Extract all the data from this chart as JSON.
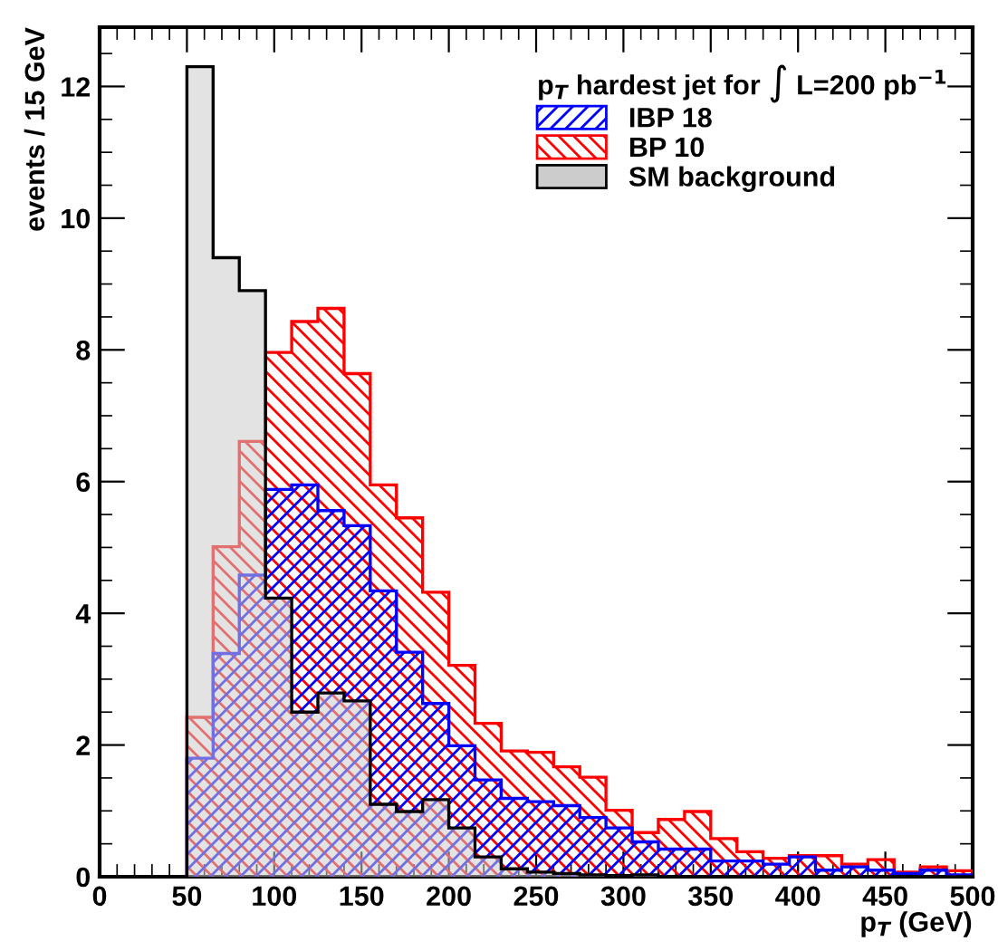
{
  "chart_data": {
    "type": "histogram",
    "xlabel": "p$_{T}$ (GeV)",
    "ylabel": "events / 15 GeV",
    "legend_title": "p$_{T}$ hardest jet for ∫ L=200 pb$^{−1}$",
    "bins": [
      50,
      65,
      80,
      95,
      110,
      125,
      140,
      155,
      170,
      185,
      200,
      215,
      230,
      245,
      260,
      275,
      290,
      305,
      320,
      335,
      350,
      365,
      380,
      395,
      410,
      425,
      440,
      455,
      470,
      485,
      500
    ],
    "series": [
      {
        "name": "IBP 18",
        "color": "#0000ff",
        "values": [
          1.8,
          3.39,
          4.58,
          5.88,
          5.95,
          5.56,
          5.33,
          4.34,
          3.41,
          2.63,
          1.99,
          1.47,
          1.19,
          1.14,
          1.08,
          0.9,
          0.74,
          0.53,
          0.42,
          0.42,
          0.24,
          0.24,
          0.19,
          0.3,
          0.1,
          0.15,
          0.1,
          0.05,
          0.1,
          0.03
        ]
      },
      {
        "name": "BP 10",
        "color": "#ff0000",
        "values": [
          2.42,
          5.01,
          6.61,
          7.96,
          8.43,
          8.63,
          7.64,
          5.95,
          5.45,
          4.32,
          3.21,
          2.33,
          1.91,
          1.89,
          1.67,
          1.51,
          1.01,
          0.67,
          0.87,
          0.99,
          0.58,
          0.38,
          0.28,
          0.32,
          0.32,
          0.19,
          0.26,
          0.07,
          0.15,
          0.09
        ]
      },
      {
        "name": "SM background",
        "color": "#cccccc",
        "values": [
          12.3,
          9.4,
          8.9,
          4.23,
          2.5,
          2.79,
          2.67,
          1.1,
          0.99,
          1.17,
          0.74,
          0.3,
          0.12,
          0.07,
          0.05,
          0.03,
          0.02,
          0.03,
          0,
          0,
          0,
          0,
          0,
          0,
          0,
          0,
          0,
          0,
          0,
          0
        ]
      }
    ],
    "xlim": [
      0,
      500
    ],
    "xticks": [
      0,
      50,
      100,
      150,
      200,
      250,
      300,
      350,
      400,
      450,
      500
    ],
    "ylim": [
      0,
      12.9
    ],
    "yticks": [
      0,
      2,
      4,
      6,
      8,
      10,
      12
    ],
    "legend": "top right",
    "grid": false
  }
}
